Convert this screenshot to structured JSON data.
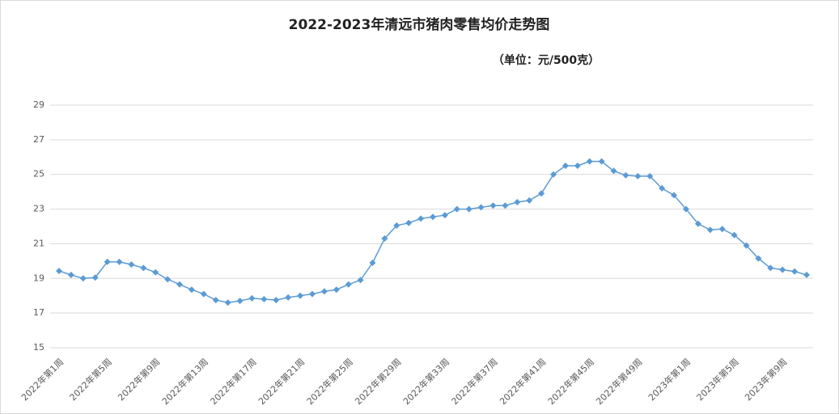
{
  "chart_data": {
    "type": "line",
    "title": "2022-2023年清远市猪肉零售均价走势图",
    "subtitle": "（单位：元/500克）",
    "categories": [
      "2022年第1周",
      null,
      null,
      null,
      "2022年第5周",
      null,
      null,
      null,
      "2022年第9周",
      null,
      null,
      null,
      "2022年第13周",
      null,
      null,
      null,
      "2022年第17周",
      null,
      null,
      null,
      "2022年第21周",
      null,
      null,
      null,
      "2022年第25周",
      null,
      null,
      null,
      "2022年第29周",
      null,
      null,
      null,
      "2022年第33周",
      null,
      null,
      null,
      "2022年第37周",
      null,
      null,
      null,
      "2022年第41周",
      null,
      null,
      null,
      "2022年第45周",
      null,
      null,
      null,
      "2022年第49周",
      null,
      null,
      null,
      "2023年第1周",
      null,
      null,
      null,
      "2023年第5周",
      null,
      null,
      null,
      "2023年第9周",
      null,
      null
    ],
    "values": [
      19.43,
      19.2,
      19.0,
      19.05,
      19.95,
      19.95,
      19.8,
      19.6,
      19.35,
      18.95,
      18.65,
      18.35,
      18.1,
      17.75,
      17.6,
      17.7,
      17.85,
      17.8,
      17.75,
      17.9,
      18.0,
      18.1,
      18.25,
      18.35,
      18.65,
      18.9,
      19.9,
      21.3,
      22.05,
      22.2,
      22.45,
      22.55,
      22.65,
      23.0,
      23.0,
      23.1,
      23.2,
      23.2,
      23.4,
      23.5,
      23.9,
      25.0,
      25.5,
      25.5,
      25.75,
      25.75,
      25.2,
      24.95,
      24.9,
      24.9,
      24.2,
      23.8,
      23.0,
      22.15,
      21.8,
      21.85,
      21.5,
      20.9,
      20.15,
      19.6,
      19.5,
      19.4,
      19.2
    ],
    "color": "#5b9bd5",
    "ylim": [
      15,
      29
    ],
    "yticks": [
      15,
      17,
      19,
      21,
      23,
      25,
      27,
      29
    ],
    "grid": true
  }
}
